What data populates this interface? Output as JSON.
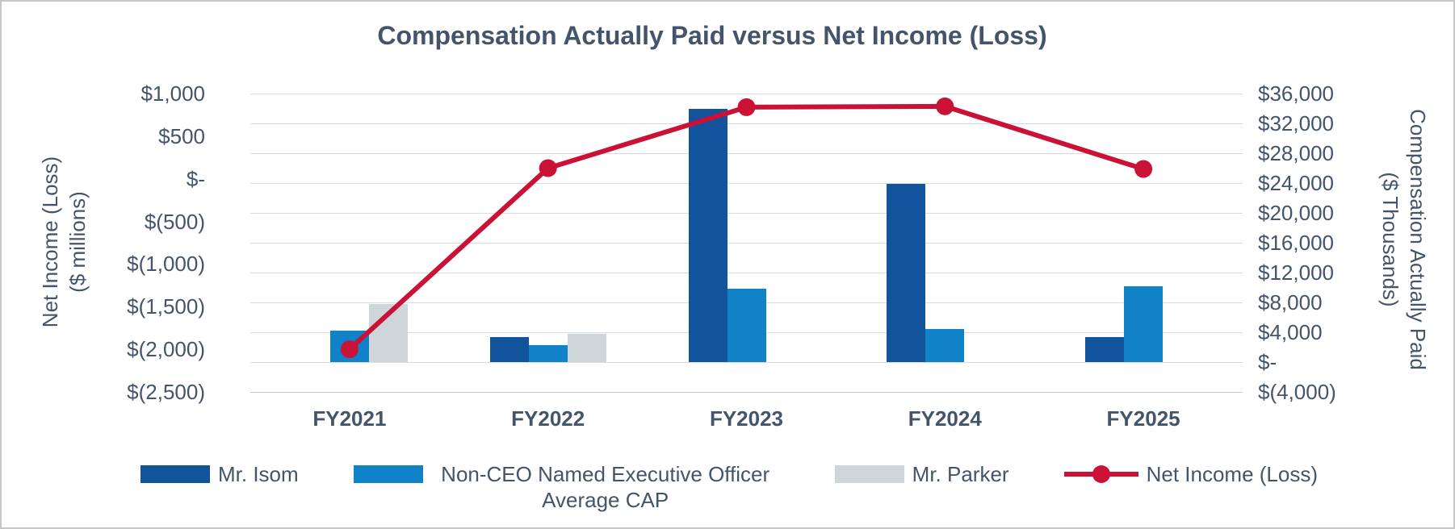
{
  "title": "Compensation Actually Paid versus Net Income (Loss)",
  "colors": {
    "text": "#44546A",
    "gridline": "#D9DCDE",
    "frame_border": "#C8C8C8",
    "isom": "#11549B",
    "non_ceo": "#0F82C8",
    "parker": "#CFD6DA",
    "net_income": "#CA1136"
  },
  "chart_data": {
    "type": "combo-bar-line",
    "title": "Compensation Actually Paid versus Net Income (Loss)",
    "categories": [
      "FY2021",
      "FY2022",
      "FY2023",
      "FY2024",
      "FY2025"
    ],
    "bar_series": [
      {
        "name": "Mr. Isom",
        "color_key": "isom",
        "axis": "right",
        "values": [
          null,
          3400,
          34000,
          23900,
          3400
        ]
      },
      {
        "name": "Non-CEO Named Executive Officer Average CAP",
        "color_key": "non_ceo",
        "axis": "right",
        "values": [
          4200,
          2300,
          9800,
          4400,
          10200
        ]
      },
      {
        "name": "Mr. Parker",
        "color_key": "parker",
        "axis": "right",
        "values": [
          7800,
          3800,
          null,
          null,
          null
        ]
      }
    ],
    "line_series": {
      "name": "Net Income (Loss)",
      "color_key": "net_income",
      "axis": "left",
      "values": [
        -2000,
        125,
        840,
        850,
        115
      ]
    },
    "left_axis": {
      "title_line1": "Net Income (Loss)",
      "title_line2": "($ millions)",
      "min": -2500,
      "max": 1000,
      "ticks": [
        {
          "value": 1000,
          "label": "$1,000"
        },
        {
          "value": 500,
          "label": "$500"
        },
        {
          "value": 0,
          "label": "$-"
        },
        {
          "value": -500,
          "label": "$(500)"
        },
        {
          "value": -1000,
          "label": "$(1,000)"
        },
        {
          "value": -1500,
          "label": "$(1,500)"
        },
        {
          "value": -2000,
          "label": "$(2,000)"
        },
        {
          "value": -2500,
          "label": "$(2,500)"
        }
      ]
    },
    "right_axis": {
      "title_line1": "Compensation Actually Paid",
      "title_line2": "($ Thousands)",
      "min": -4000,
      "max": 36000,
      "ticks": [
        {
          "value": 36000,
          "label": "$36,000"
        },
        {
          "value": 32000,
          "label": "$32,000"
        },
        {
          "value": 28000,
          "label": "$28,000"
        },
        {
          "value": 24000,
          "label": "$24,000"
        },
        {
          "value": 20000,
          "label": "$20,000"
        },
        {
          "value": 16000,
          "label": "$16,000"
        },
        {
          "value": 12000,
          "label": "$12,000"
        },
        {
          "value": 8000,
          "label": "$8,000"
        },
        {
          "value": 4000,
          "label": "$4,000"
        },
        {
          "value": 0,
          "label": "$-"
        },
        {
          "value": -4000,
          "label": "$(4,000)"
        }
      ]
    },
    "grid": "horizontal",
    "legend_position": "bottom"
  }
}
